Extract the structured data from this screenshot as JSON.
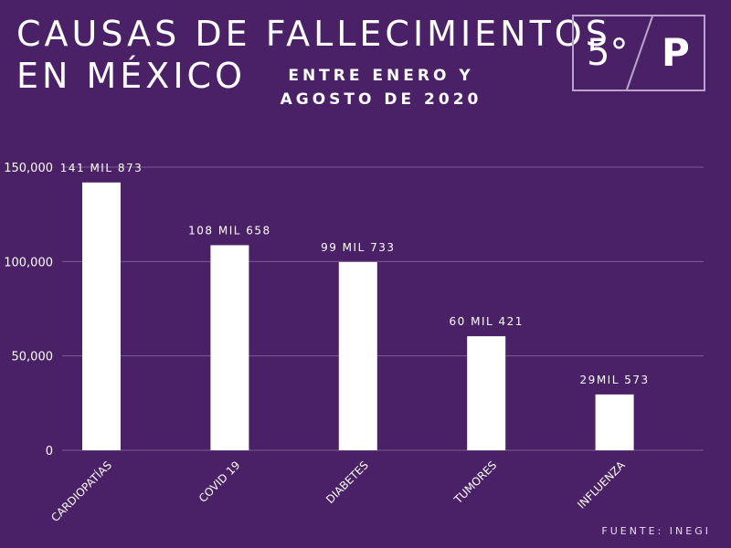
{
  "header": {
    "title_line1": "CAUSAS DE FALLECIMIENTOS",
    "title_line2": "EN MÉXICO",
    "subtitle_line1": "ENTRE ENERO Y",
    "subtitle_line2": "AGOSTO DE 2020"
  },
  "logo": {
    "left_text": "5°",
    "right_text": "P"
  },
  "source": "FUENTE: INEGI",
  "colors": {
    "background": "#4a2167",
    "bar": "#ffffff",
    "gridline": "#7a5a92"
  },
  "chart_data": {
    "type": "bar",
    "categories": [
      "CARDIOPATÍAS",
      "COVID 19",
      "DIABETES",
      "TUMORES",
      "INFLUENZA"
    ],
    "values": [
      141873,
      108658,
      99733,
      60421,
      29573
    ],
    "data_labels": [
      "141 MIL 873",
      "108 MIL 658",
      "99 MIL 733",
      "60 MIL 421",
      "29MIL 573"
    ],
    "y_ticks": [
      0,
      50000,
      100000,
      150000
    ],
    "y_tick_labels": [
      "0",
      "50,000",
      "100,000",
      "150,000"
    ],
    "ylim": [
      0,
      150000
    ],
    "grid": true,
    "legend": "none"
  }
}
